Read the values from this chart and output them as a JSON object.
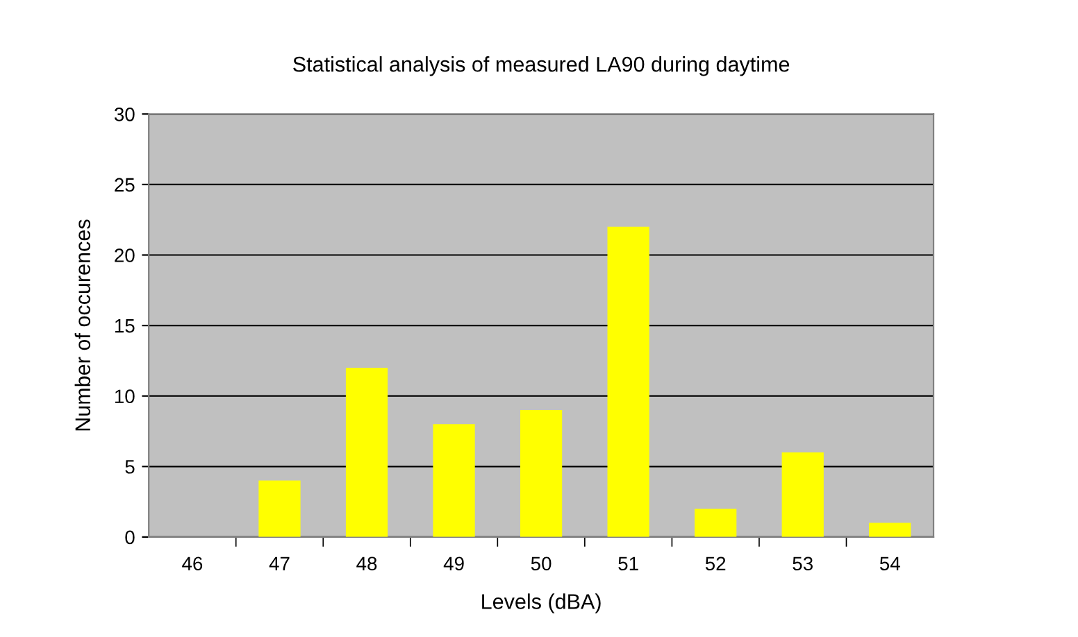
{
  "chart_data": {
    "type": "bar",
    "title": "Statistical analysis of measured LA90 during daytime",
    "xlabel": "Levels (dBA)",
    "ylabel": "Number of occurences",
    "categories": [
      "46",
      "47",
      "48",
      "49",
      "50",
      "51",
      "52",
      "53",
      "54"
    ],
    "values": [
      0,
      4,
      12,
      8,
      9,
      22,
      2,
      6,
      1
    ],
    "color": "#ffff00",
    "ylim": [
      0,
      30
    ],
    "yticks": [
      0,
      5,
      10,
      15,
      20,
      25,
      30
    ],
    "grid": "y",
    "legend": false
  }
}
